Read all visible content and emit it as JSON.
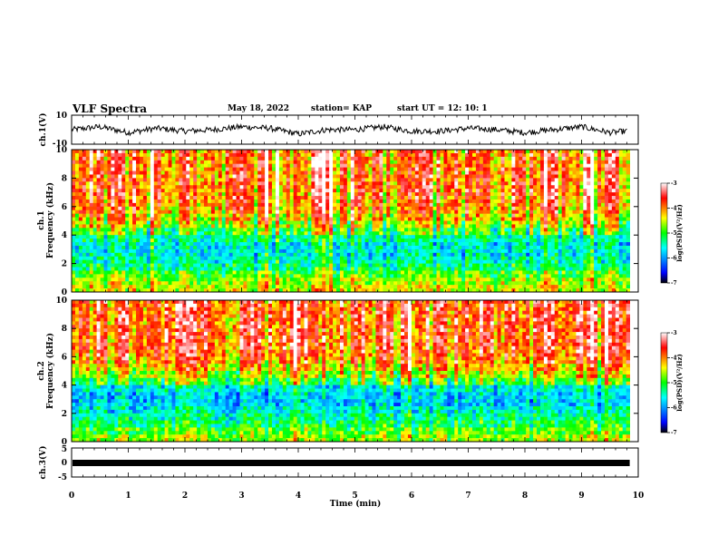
{
  "header": {
    "title": "VLF Spectra",
    "date": "May 18, 2022",
    "station": "station= KAP",
    "start": "start  UT  =   12: 10: 1"
  },
  "chart_data": [
    {
      "type": "line",
      "panel": "ch1_waveform",
      "ylabel": "ch.1(V)",
      "ylim": [
        -10,
        10
      ],
      "yticks": [
        "10",
        "-10"
      ],
      "xlim": [
        0,
        10
      ],
      "description_values_note": "noisy waveform around 0 V, amplitude roughly ±3 V",
      "x": [
        0,
        0.5,
        1,
        1.5,
        2,
        2.5,
        3,
        3.5,
        4,
        4.5,
        5,
        5.5,
        6,
        6.5,
        7,
        7.5,
        8,
        8.5,
        9,
        9.5,
        9.8
      ],
      "y": [
        0,
        2,
        -2,
        1,
        -1,
        0,
        2,
        1,
        -3,
        0,
        0,
        2,
        -1,
        -1,
        1,
        0,
        -2,
        0,
        2,
        -2,
        -1
      ]
    },
    {
      "type": "heatmap",
      "panel": "ch1_spectrogram",
      "title": "ch.1",
      "ylabel": "Frequency  (kHz)",
      "ylim": [
        0,
        10
      ],
      "yticks": [
        "0",
        "2",
        "4",
        "6",
        "8",
        "10"
      ],
      "xlim": [
        0,
        9.85
      ],
      "colorbar": {
        "label": "log(PSD)(V²/Hz)",
        "range": [
          -7,
          -3
        ],
        "ticks": [
          "-3",
          "-4",
          "-5",
          "-6",
          "-7"
        ]
      },
      "freq_bands_kHz": [
        0,
        0.5,
        1,
        1.5,
        2,
        2.5,
        3,
        3.5,
        4,
        4.5,
        5,
        5.5,
        6,
        6.5,
        7,
        7.5,
        8,
        8.5,
        9,
        9.5,
        10
      ],
      "band_level_logpsd": [
        -4.5,
        -4.6,
        -4.9,
        -5.3,
        -5.5,
        -5.6,
        -5.6,
        -5.4,
        -5.0,
        -4.6,
        -4.3,
        -4.1,
        -4.0,
        -3.9,
        -3.9,
        -3.9,
        -3.9,
        -3.9,
        -3.9,
        -3.9
      ]
    },
    {
      "type": "heatmap",
      "panel": "ch2_spectrogram",
      "title": "ch.2",
      "ylabel": "Frequency  (kHz)",
      "ylim": [
        0,
        10
      ],
      "yticks": [
        "0",
        "2",
        "4",
        "6",
        "8",
        "10"
      ],
      "xlim": [
        0,
        9.85
      ],
      "colorbar": {
        "label": "log(PSD)(V²/Hz)",
        "range": [
          -7,
          -3
        ],
        "ticks": [
          "-3",
          "-4",
          "-5",
          "-6",
          "-7"
        ]
      },
      "freq_bands_kHz": [
        0,
        0.5,
        1,
        1.5,
        2,
        2.5,
        3,
        3.5,
        4,
        4.5,
        5,
        5.5,
        6,
        6.5,
        7,
        7.5,
        8,
        8.5,
        9,
        9.5,
        10
      ],
      "band_level_logpsd": [
        -4.7,
        -4.9,
        -5.2,
        -5.4,
        -5.6,
        -5.8,
        -5.8,
        -5.6,
        -5.0,
        -4.6,
        -4.3,
        -4.0,
        -3.9,
        -3.8,
        -3.8,
        -3.8,
        -3.8,
        -3.8,
        -3.8,
        -3.8
      ]
    },
    {
      "type": "line",
      "panel": "ch3_waveform",
      "ylabel": "ch.3(V)",
      "ylim": [
        -5,
        5
      ],
      "yticks": [
        "5",
        "0",
        "-5"
      ],
      "xlim": [
        0,
        10
      ],
      "x": [
        0,
        9.85
      ],
      "y": [
        0,
        0
      ]
    }
  ],
  "xaxis": {
    "label": "Time  (min)",
    "range": [
      0,
      10
    ],
    "ticks": [
      "0",
      "1",
      "2",
      "3",
      "4",
      "5",
      "6",
      "7",
      "8",
      "9",
      "10"
    ]
  },
  "colors": {
    "axis": "#000000",
    "colormap": [
      "#000000",
      "#0000ff",
      "#00ffff",
      "#00ff00",
      "#ffff00",
      "#ff0000",
      "#ffffff"
    ]
  }
}
